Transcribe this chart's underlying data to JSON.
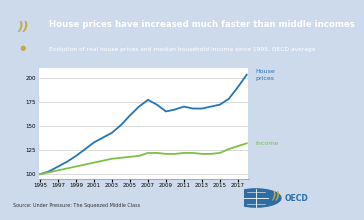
{
  "title": "House prices have increased much faster than middle incomes",
  "subtitle": "Evolution of real house prices and median household income since 1995, OECD average",
  "source": "Source: Under Pressure: The Squeezed Middle Class",
  "header_bg": "#2e6da4",
  "header_text_color": "#ffffff",
  "chart_bg": "#ccdaeb",
  "plot_bg": "#ffffff",
  "years": [
    1995,
    1996,
    1997,
    1998,
    1999,
    2000,
    2001,
    2002,
    2003,
    2004,
    2005,
    2006,
    2007,
    2008,
    2009,
    2010,
    2011,
    2012,
    2013,
    2014,
    2015,
    2016,
    2017,
    2018
  ],
  "house_prices": [
    100,
    103,
    108,
    113,
    119,
    126,
    133,
    138,
    143,
    151,
    161,
    170,
    177,
    172,
    165,
    167,
    170,
    168,
    168,
    170,
    172,
    178,
    190,
    203
  ],
  "income": [
    100,
    102,
    104,
    106,
    108,
    110,
    112,
    114,
    116,
    117,
    118,
    119,
    122,
    122,
    121,
    121,
    122,
    122,
    121,
    121,
    122,
    126,
    129,
    132
  ],
  "house_color": "#2175b8",
  "income_color": "#7dc142",
  "ylim": [
    95,
    210
  ],
  "yticks": [
    100,
    125,
    150,
    175,
    200
  ],
  "xtick_years": [
    1995,
    1997,
    1999,
    2001,
    2003,
    2005,
    2007,
    2009,
    2011,
    2013,
    2015,
    2017
  ],
  "house_label": "House\nprices",
  "income_label": "Income",
  "house_label_color": "#2175b8",
  "income_label_color": "#7dc142",
  "logo_symbol_color": "#c8a84b",
  "logo_text_color": "#2e6da4"
}
